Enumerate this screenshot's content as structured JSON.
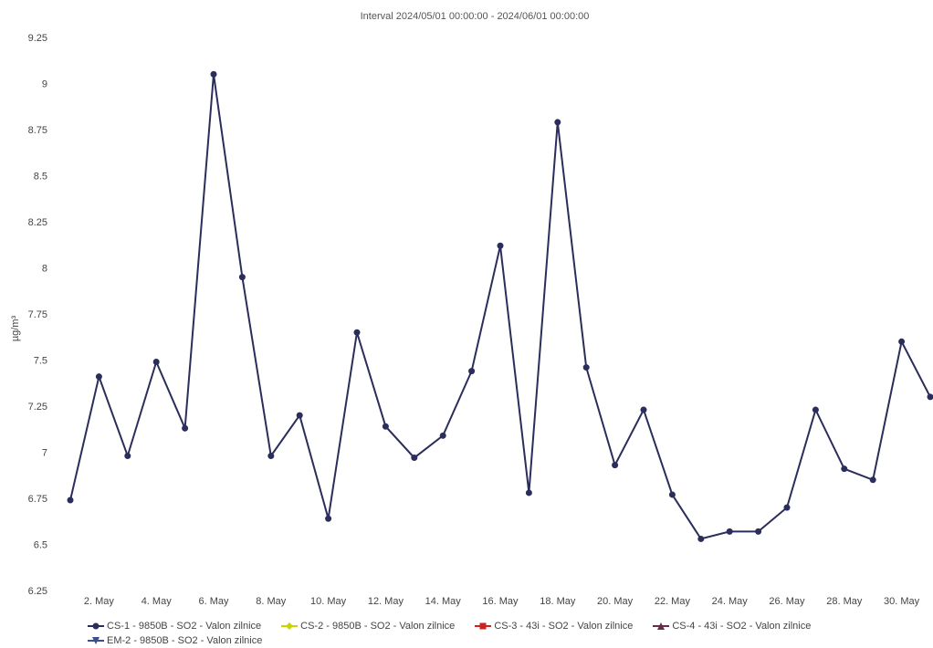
{
  "chart_data": {
    "type": "line",
    "title": "Interval 2024/05/01 00:00:00 - 2024/06/01 00:00:00",
    "ylabel": "µg/m³",
    "xlabel": "",
    "ylim": [
      6.25,
      9.25
    ],
    "yticks": [
      "6.25",
      "6.5",
      "6.75",
      "7",
      "7.25",
      "7.5",
      "7.75",
      "8",
      "8.25",
      "8.5",
      "8.75",
      "9",
      "9.25"
    ],
    "xtick_labels": [
      "2. May",
      "4. May",
      "6. May",
      "8. May",
      "10. May",
      "12. May",
      "14. May",
      "16. May",
      "18. May",
      "20. May",
      "22. May",
      "24. May",
      "26. May",
      "28. May",
      "30. May"
    ],
    "series": [
      {
        "name": "CS-1 - 9850B - SO2 - Valon zilnice",
        "color": "#2b2d5a",
        "marker": "circle",
        "x": [
          "2024-05-01",
          "2024-05-02",
          "2024-05-03",
          "2024-05-04",
          "2024-05-05",
          "2024-05-06",
          "2024-05-07",
          "2024-05-08",
          "2024-05-09",
          "2024-05-10",
          "2024-05-11",
          "2024-05-12",
          "2024-05-13",
          "2024-05-14",
          "2024-05-15",
          "2024-05-16",
          "2024-05-17",
          "2024-05-18",
          "2024-05-19",
          "2024-05-20",
          "2024-05-21",
          "2024-05-22",
          "2024-05-23",
          "2024-05-24",
          "2024-05-25",
          "2024-05-26",
          "2024-05-27",
          "2024-05-28",
          "2024-05-29",
          "2024-05-30",
          "2024-05-31"
        ],
        "values": [
          6.74,
          7.41,
          6.98,
          7.49,
          7.13,
          9.05,
          7.95,
          6.98,
          7.2,
          6.64,
          7.65,
          7.14,
          6.97,
          7.09,
          7.44,
          8.12,
          6.78,
          8.79,
          7.46,
          6.93,
          7.23,
          6.77,
          6.53,
          6.57,
          6.57,
          6.7,
          7.23,
          6.91,
          6.85,
          7.6,
          7.3
        ]
      },
      {
        "name": "CS-2 - 9850B - SO2 - Valon zilnice",
        "color": "#c8d400",
        "marker": "diamond",
        "values": []
      },
      {
        "name": "CS-3 - 43i - SO2 - Valon zilnice",
        "color": "#cc2222",
        "marker": "square",
        "values": []
      },
      {
        "name": "CS-4 - 43i - SO2 - Valon zilnice",
        "color": "#6a2a4a",
        "marker": "triangle",
        "values": []
      },
      {
        "name": "EM-2 - 9850B - SO2 - Valon zilnice",
        "color": "#3c4f8a",
        "marker": "triangle-down",
        "values": []
      }
    ],
    "grid": false,
    "legend_position": "bottom-left"
  }
}
